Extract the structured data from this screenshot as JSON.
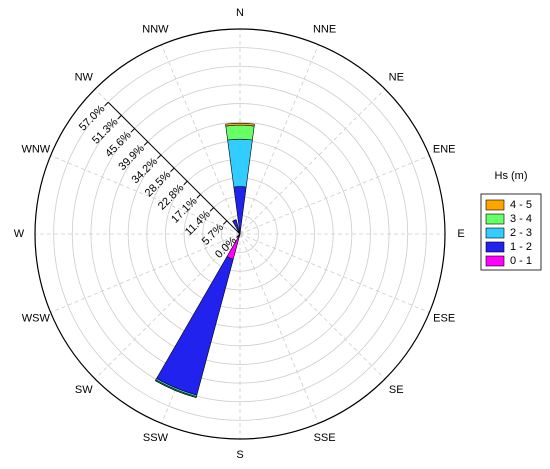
{
  "chart_data": {
    "type": "windrose",
    "categories": [
      "N",
      "NNE",
      "NE",
      "ENE",
      "E",
      "ESE",
      "SE",
      "SSE",
      "S",
      "SSW",
      "SW",
      "WSW",
      "W",
      "WNW",
      "NW",
      "NNW"
    ],
    "series": [
      {
        "name": "0 - 1",
        "color": "#ff00ff",
        "values": [
          0.5,
          0,
          0,
          0,
          0,
          0,
          0,
          0,
          0,
          8,
          0,
          0,
          0,
          0,
          0,
          1
        ]
      },
      {
        "name": "1 - 2",
        "color": "#2222ee",
        "values": [
          14,
          0,
          0,
          0,
          0,
          0,
          0,
          0,
          0,
          43,
          0,
          0,
          0,
          0,
          0,
          3.5
        ]
      },
      {
        "name": "2 - 3",
        "color": "#33ccff",
        "values": [
          14.5,
          0,
          0,
          0,
          0,
          0,
          0,
          0,
          0,
          0.5,
          0,
          0,
          0,
          0,
          0,
          0
        ]
      },
      {
        "name": "3 - 4",
        "color": "#66ff66",
        "values": [
          4.3,
          0,
          0,
          0,
          0,
          0,
          0,
          0,
          0,
          0.3,
          0,
          0,
          0,
          0,
          0,
          0
        ]
      },
      {
        "name": "4 - 5",
        "color": "#ffa500",
        "values": [
          0.6,
          0,
          0,
          0,
          0,
          0,
          0,
          0,
          0,
          0,
          0,
          0,
          0,
          0,
          0,
          0
        ]
      }
    ],
    "rlim": [
      0,
      62.7
    ],
    "rticks": [
      {
        "value": 0,
        "label": "0.0%"
      },
      {
        "value": 5.7,
        "label": "5.7%"
      },
      {
        "value": 11.4,
        "label": "11.4%"
      },
      {
        "value": 17.1,
        "label": "17.1%"
      },
      {
        "value": 22.8,
        "label": "22.8%"
      },
      {
        "value": 28.5,
        "label": "28.5%"
      },
      {
        "value": 34.2,
        "label": "34.2%"
      },
      {
        "value": 39.9,
        "label": "39.9%"
      },
      {
        "value": 45.6,
        "label": "45.6%"
      },
      {
        "value": 51.3,
        "label": "51.3%"
      },
      {
        "value": 57.0,
        "label": "57.0%"
      }
    ],
    "legend_title": "Hs (m)",
    "grid": true
  }
}
